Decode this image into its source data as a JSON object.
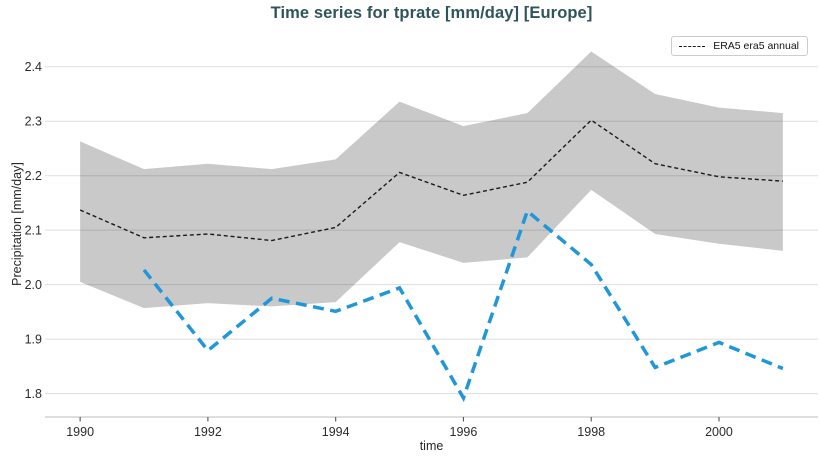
{
  "chart_data": {
    "type": "line",
    "title": "Time series for tprate [mm/day] [Europe]",
    "xlabel": "time",
    "ylabel": "Precipitation [mm/day]",
    "x": [
      1990,
      1991,
      1992,
      1993,
      1994,
      1995,
      1996,
      1997,
      1998,
      1999,
      2000,
      2001
    ],
    "series": [
      {
        "name": "era5-annual-mean",
        "legend_label": "ERA5 era5 annual",
        "in_legend": true,
        "color": "#1a1a1a",
        "line_style": "dashed-thin",
        "values": [
          2.137,
          2.086,
          2.093,
          2.081,
          2.105,
          2.206,
          2.164,
          2.188,
          2.302,
          2.222,
          2.198,
          2.19
        ]
      },
      {
        "name": "blue-annual-series",
        "in_legend": false,
        "color": "#1f97d8",
        "line_style": "dashed-thick",
        "values": [
          null,
          2.027,
          1.879,
          1.975,
          1.951,
          1.994,
          1.792,
          2.135,
          2.037,
          1.848,
          1.894,
          1.846
        ]
      }
    ],
    "band": {
      "attached_to": "era5-annual-mean",
      "color": "#c9c9c9",
      "upper": [
        2.263,
        2.212,
        2.222,
        2.212,
        2.23,
        2.336,
        2.291,
        2.315,
        2.428,
        2.35,
        2.325,
        2.315
      ],
      "lower": [
        2.005,
        1.957,
        1.966,
        1.96,
        1.968,
        2.078,
        2.04,
        2.05,
        2.174,
        2.093,
        2.075,
        2.062
      ]
    },
    "x_ticks": [
      1990,
      1992,
      1994,
      1996,
      1998,
      2000
    ],
    "y_ticks": [
      1.8,
      1.9,
      2.0,
      2.1,
      2.2,
      2.3,
      2.4
    ],
    "xlim": [
      1989.45,
      2001.55
    ],
    "ylim": [
      1.757,
      2.462
    ],
    "grid": "horizontal",
    "legend": {
      "position": "upper-right",
      "entries": [
        {
          "label": "ERA5 era5 annual",
          "sample": "black-dashed-line"
        }
      ]
    },
    "colors": {
      "title": "#2f545c",
      "band": "#c9c9c9",
      "era5_line": "#1a1a1a",
      "blue_line": "#1f97d8",
      "gridline": "#d9d9d9",
      "spine": "#c9c9c9",
      "tick_label": "#2b2b2b"
    }
  }
}
